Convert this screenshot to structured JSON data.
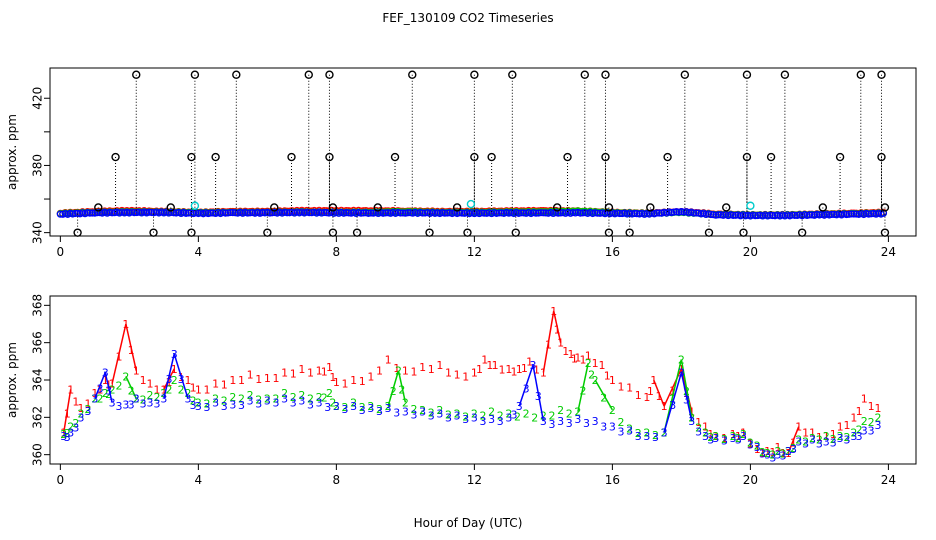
{
  "title": "FEF_130109  CO2 Timeseries",
  "xlabel": "Hour of Day (UTC)",
  "colors": {
    "series1": "#ff0000",
    "series2": "#00cc00",
    "series3": "#0000ff",
    "outlier": "#000000",
    "cyan": "#00cccc"
  },
  "chart_data": [
    {
      "type": "scatter",
      "title": "FEF_130109  CO2 Timeseries",
      "xlabel": "",
      "ylabel": "approx. ppm",
      "xlim": [
        -0.3,
        24.8
      ],
      "ylim": [
        338,
        438
      ],
      "xticks": [
        0,
        4,
        8,
        12,
        16,
        20,
        24
      ],
      "yticks": [
        340,
        360,
        380,
        400,
        420
      ],
      "ytick_labels": [
        "340",
        "",
        "380",
        "",
        "420"
      ],
      "outliers_high": [
        2.2,
        3.9,
        5.1,
        7.2,
        7.8,
        10.2,
        12.0,
        13.1,
        15.2,
        15.8,
        18.1,
        19.9,
        21.0,
        23.2,
        23.8
      ],
      "outliers_mid": [
        1.6,
        3.8,
        4.5,
        6.7,
        7.8,
        9.7,
        12.0,
        12.5,
        14.7,
        15.8,
        17.6,
        19.9,
        20.6,
        22.6,
        23.8
      ],
      "outliers_low": [
        0.5,
        2.7,
        3.8,
        6.0,
        7.9,
        8.6,
        10.7,
        11.8,
        13.2,
        15.9,
        16.5,
        18.8,
        19.8,
        21.5,
        23.9
      ],
      "outliers_near": [
        1.1,
        3.2,
        6.2,
        7.9,
        9.2,
        11.5,
        14.4,
        15.9,
        17.1,
        19.3,
        22.1,
        23.9
      ],
      "cyan_points": [
        [
          3.9,
          356
        ],
        [
          11.9,
          357
        ],
        [
          20.0,
          356
        ]
      ],
      "series": [
        {
          "name": "1",
          "x": [
            0,
            1,
            2,
            3,
            4,
            5,
            6,
            7,
            8,
            9,
            10,
            11,
            12,
            13,
            14,
            15,
            16,
            17,
            18,
            19,
            20,
            21,
            22,
            23,
            24
          ],
          "values": [
            351.5,
            352.5,
            353,
            352.5,
            352,
            352.5,
            352.5,
            353,
            353,
            353,
            352.8,
            352.5,
            352.5,
            352.8,
            353,
            352.8,
            352,
            351.5,
            352.5,
            351,
            350.5,
            350.5,
            351,
            351.5,
            352
          ]
        },
        {
          "name": "2",
          "x": [
            0,
            1,
            2,
            3,
            4,
            5,
            6,
            7,
            8,
            9,
            10,
            11,
            12,
            13,
            14,
            15,
            16,
            17,
            18,
            19,
            20,
            21,
            22,
            23,
            24
          ],
          "values": [
            351.3,
            352,
            352.3,
            352.2,
            351.8,
            352,
            352,
            352.2,
            352,
            352.1,
            352.4,
            352,
            352,
            352.2,
            352.3,
            352.7,
            351.8,
            351.4,
            352.2,
            350.8,
            350.4,
            350.4,
            350.8,
            351.2,
            351.6
          ]
        },
        {
          "name": "3",
          "x": [
            0,
            1,
            2,
            3,
            4,
            5,
            6,
            7,
            8,
            9,
            10,
            11,
            12,
            13,
            14,
            15,
            16,
            17,
            18,
            19,
            20,
            21,
            22,
            23,
            24
          ],
          "values": [
            351,
            351.8,
            352,
            352,
            351.5,
            351.8,
            351.8,
            352,
            351.8,
            351.7,
            351.8,
            351.7,
            351.6,
            351.7,
            351.7,
            351.8,
            351.5,
            351.2,
            352.5,
            350.6,
            350.2,
            350.2,
            350.6,
            351,
            351.4
          ]
        }
      ]
    },
    {
      "type": "line",
      "title": "",
      "xlabel": "Hour of Day (UTC)",
      "ylabel": "approx. ppm",
      "xlim": [
        -0.3,
        24.8
      ],
      "ylim": [
        359.5,
        368.5
      ],
      "xticks": [
        0,
        4,
        8,
        12,
        16,
        20,
        24
      ],
      "yticks": [
        360,
        362,
        364,
        366,
        368
      ],
      "series": [
        {
          "name": "1",
          "x": [
            0.1,
            0.3,
            0.6,
            1.0,
            1.3,
            1.5,
            1.9,
            2.2,
            2.6,
            3.0,
            3.3,
            3.7,
            4.0,
            4.5,
            5.0,
            5.5,
            6.0,
            6.5,
            7.0,
            7.5,
            7.8,
            8.0,
            8.5,
            9.0,
            9.5,
            10.0,
            10.5,
            11.0,
            11.5,
            12.0,
            12.3,
            12.6,
            13.0,
            13.3,
            13.6,
            14.0,
            14.3,
            14.5,
            14.8,
            15.0,
            15.3,
            15.7,
            16.0,
            16.5,
            17.0,
            17.2,
            17.5,
            18.0,
            18.3,
            18.7,
            19.0,
            19.5,
            19.8,
            20.2,
            20.5,
            20.8,
            21.1,
            21.4,
            21.8,
            22.2,
            22.6,
            23.0,
            23.3,
            23.7
          ],
          "values": [
            361.2,
            363.5,
            362.5,
            363.3,
            364.0,
            363.8,
            367.0,
            364.5,
            363.8,
            363.5,
            364.6,
            364.0,
            363.5,
            363.8,
            364.0,
            364.3,
            364.1,
            364.4,
            364.6,
            364.5,
            364.7,
            363.9,
            364.0,
            364.2,
            365.1,
            364.5,
            364.7,
            364.8,
            364.3,
            364.4,
            365.1,
            364.8,
            364.6,
            364.6,
            365.0,
            364.4,
            367.7,
            366.0,
            365.4,
            365.2,
            365.3,
            364.8,
            364.0,
            363.6,
            363.1,
            364.0,
            362.6,
            364.6,
            362.3,
            361.5,
            361.0,
            361.1,
            361.2,
            360.3,
            360.2,
            360.4,
            360.1,
            361.5,
            361.2,
            361.0,
            361.5,
            362.0,
            363.0,
            362.5
          ]
        },
        {
          "name": "2",
          "x": [
            0.1,
            0.3,
            0.6,
            1.0,
            1.3,
            1.5,
            1.9,
            2.2,
            2.6,
            3.0,
            3.3,
            3.7,
            4.0,
            4.5,
            5.0,
            5.5,
            6.0,
            6.5,
            7.0,
            7.5,
            7.8,
            8.0,
            8.5,
            9.0,
            9.5,
            9.8,
            10.0,
            10.5,
            11.0,
            11.5,
            12.0,
            12.5,
            13.0,
            13.5,
            14.0,
            14.5,
            15.0,
            15.3,
            15.5,
            16.0,
            16.5,
            17.0,
            17.5,
            18.0,
            18.3,
            18.7,
            19.0,
            19.5,
            19.8,
            20.2,
            20.5,
            20.8,
            21.1,
            21.4,
            21.8,
            22.2,
            22.6,
            23.0,
            23.3,
            23.7
          ],
          "values": [
            361.1,
            361.5,
            362.2,
            363.0,
            363.3,
            363.5,
            364.2,
            363.0,
            363.2,
            363.3,
            364.0,
            363.3,
            362.8,
            363.0,
            363.1,
            363.2,
            363.0,
            363.3,
            363.2,
            363.1,
            363.3,
            362.6,
            362.8,
            362.6,
            362.6,
            364.5,
            362.8,
            362.4,
            362.4,
            362.2,
            362.2,
            362.3,
            362.2,
            362.2,
            362.1,
            362.4,
            362.3,
            364.9,
            364.0,
            362.4,
            361.4,
            361.2,
            361.2,
            365.1,
            362.0,
            361.2,
            361.0,
            361.0,
            361.1,
            360.5,
            360.1,
            360.2,
            360.2,
            360.8,
            360.9,
            361.0,
            361.0,
            361.2,
            361.8,
            362.0
          ]
        },
        {
          "name": "3",
          "x": [
            0.1,
            0.3,
            0.6,
            1.0,
            1.3,
            1.5,
            1.9,
            2.2,
            2.6,
            3.0,
            3.3,
            3.7,
            4.0,
            4.5,
            5.0,
            5.5,
            6.0,
            6.5,
            7.0,
            7.5,
            8.0,
            8.5,
            9.0,
            9.5,
            10.0,
            10.5,
            11.0,
            11.5,
            12.0,
            12.5,
            13.0,
            13.3,
            13.7,
            14.0,
            14.5,
            15.0,
            15.5,
            16.0,
            16.5,
            17.0,
            17.5,
            18.0,
            18.3,
            18.7,
            19.0,
            19.5,
            19.8,
            20.2,
            20.5,
            20.8,
            21.1,
            21.4,
            21.8,
            22.2,
            22.6,
            23.0,
            23.3,
            23.7
          ],
          "values": [
            361.0,
            361.2,
            362.0,
            363.0,
            364.4,
            362.8,
            362.7,
            363.0,
            362.8,
            363.0,
            365.4,
            363.0,
            362.6,
            362.8,
            362.7,
            362.9,
            362.9,
            363.0,
            362.9,
            362.8,
            362.6,
            362.6,
            362.5,
            362.5,
            362.3,
            362.3,
            362.2,
            362.1,
            362.0,
            361.9,
            362.0,
            362.6,
            364.8,
            361.8,
            361.8,
            361.9,
            361.8,
            361.5,
            361.3,
            361.0,
            361.2,
            364.4,
            361.8,
            361.0,
            360.9,
            360.9,
            361.0,
            360.4,
            360.0,
            360.0,
            360.2,
            360.7,
            360.8,
            360.7,
            360.9,
            361.0,
            361.3,
            361.6
          ]
        }
      ]
    }
  ]
}
